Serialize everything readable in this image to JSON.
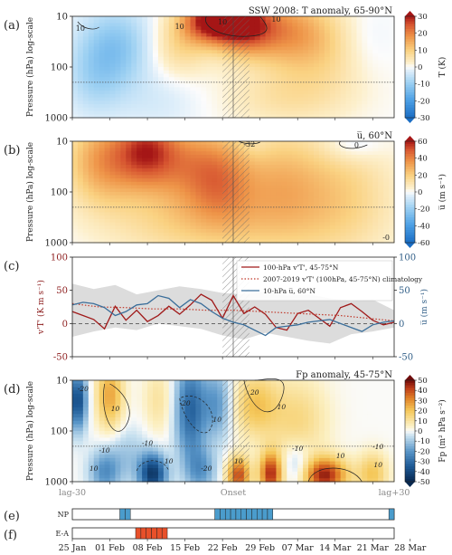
{
  "chart_data": [
    {
      "id": "a",
      "type": "heatmap",
      "panel_label": "(a)",
      "title": "SSW 2008: T anomaly, 65-90°N",
      "ylabel": "Pressure (hPa) log-scale",
      "y_ticks": [
        "10",
        "100",
        "1000"
      ],
      "ylim": [
        10,
        1000
      ],
      "y_scale": "log",
      "colorbar_label": "T (K)",
      "colorbar_ticks": [
        30,
        20,
        10,
        0,
        -10,
        -20,
        -30
      ],
      "vmin": -30,
      "vmax": 30,
      "dotted_line_hPa": 200,
      "contour_labels": [
        "10",
        "10",
        "10",
        "10"
      ],
      "blobs": [
        {
          "day": -22,
          "p": 40,
          "v": -12,
          "sd": 5,
          "sp": 0.55
        },
        {
          "day": -26,
          "p": 200,
          "v": -6,
          "sd": 4,
          "sp": 0.5
        },
        {
          "day": -10,
          "p": 40,
          "v": 8,
          "sd": 4,
          "sp": 0.4
        },
        {
          "day": -4,
          "p": 12,
          "v": 30,
          "sd": 4,
          "sp": 0.3
        },
        {
          "day": 2,
          "p": 15,
          "v": 26,
          "sd": 4,
          "sp": 0.4
        },
        {
          "day": 10,
          "p": 20,
          "v": 14,
          "sd": 5,
          "sp": 0.5
        },
        {
          "day": 18,
          "p": 40,
          "v": 8,
          "sd": 6,
          "sp": 0.6
        },
        {
          "day": 24,
          "p": 30,
          "v": -4,
          "sd": 4,
          "sp": 0.5
        },
        {
          "day": 10,
          "p": 400,
          "v": 6,
          "sd": 8,
          "sp": 0.4
        },
        {
          "day": -14,
          "p": 500,
          "v": -3,
          "sd": 6,
          "sp": 0.4
        }
      ]
    },
    {
      "id": "b",
      "type": "heatmap",
      "panel_label": "(b)",
      "title": "u̅, 60°N",
      "ylabel": "Pressure (hPa) log-scale",
      "y_ticks": [
        "10",
        "100",
        "1000"
      ],
      "ylim": [
        10,
        1000
      ],
      "y_scale": "log",
      "colorbar_label": "u̅ (m s⁻¹)",
      "colorbar_ticks": [
        60,
        40,
        20,
        0,
        -20,
        -40,
        -60
      ],
      "vmin": -60,
      "vmax": 60,
      "dotted_line_hPa": 200,
      "contour_labels": [
        "-32",
        "0",
        "-0"
      ],
      "blobs": [
        {
          "day": -24,
          "p": 25,
          "v": 34,
          "sd": 5,
          "sp": 0.6
        },
        {
          "day": -16,
          "p": 15,
          "v": 44,
          "sd": 4,
          "sp": 0.5
        },
        {
          "day": -8,
          "p": 30,
          "v": 30,
          "sd": 5,
          "sp": 0.6
        },
        {
          "day": -2,
          "p": 60,
          "v": 24,
          "sd": 4,
          "sp": 0.6
        },
        {
          "day": 8,
          "p": 60,
          "v": 22,
          "sd": 6,
          "sp": 0.7
        },
        {
          "day": 20,
          "p": 80,
          "v": 16,
          "sd": 7,
          "sp": 0.8
        },
        {
          "day": 22,
          "p": 12,
          "v": -10,
          "sd": 4,
          "sp": 0.25
        },
        {
          "day": 4,
          "p": 12,
          "v": -4,
          "sd": 2,
          "sp": 0.2
        },
        {
          "day": -10,
          "p": 400,
          "v": 14,
          "sd": 10,
          "sp": 0.5
        },
        {
          "day": 10,
          "p": 500,
          "v": 10,
          "sd": 12,
          "sp": 0.6
        }
      ]
    },
    {
      "id": "c",
      "type": "line",
      "panel_label": "(c)",
      "ylabel_left": "v'T' (K m s⁻¹)",
      "ylabel_right": "u̅ (m s⁻¹)",
      "ylim_left": [
        -50,
        100
      ],
      "ylim_right": [
        -50,
        100
      ],
      "y_ticks": [
        100,
        50,
        0,
        -50
      ],
      "legend": [
        "100-hPa v'T', 45-75°N",
        "2007-2019 v'T' (100hPa, 45-75°N) climatology",
        "10-hPa u̅, 60°N"
      ],
      "series": [
        {
          "name": "100-hPa v'T', 45-75°N",
          "color": "#a01a1a",
          "style": "solid",
          "x": [
            -30,
            -28,
            -26,
            -24,
            -22,
            -20,
            -18,
            -16,
            -14,
            -12,
            -10,
            -8,
            -6,
            -4,
            -2,
            0,
            2,
            4,
            6,
            8,
            10,
            12,
            14,
            16,
            18,
            20,
            22,
            24,
            26,
            28,
            30
          ],
          "y": [
            18,
            12,
            6,
            -8,
            26,
            5,
            20,
            3,
            12,
            26,
            14,
            28,
            44,
            35,
            8,
            42,
            15,
            25,
            14,
            -6,
            -10,
            15,
            20,
            8,
            -4,
            24,
            30,
            18,
            5,
            -2,
            2
          ]
        },
        {
          "name": "2007-2019 v'T' (100hPa, 45-75°N) climatology",
          "color": "#c0392b",
          "style": "dotted",
          "x": [
            -30,
            -25,
            -20,
            -15,
            -10,
            -5,
            0,
            5,
            10,
            15,
            20,
            25,
            30
          ],
          "y": [
            30,
            25,
            24,
            22,
            22,
            20,
            20,
            18,
            16,
            14,
            12,
            8,
            4
          ]
        },
        {
          "name": "10-hPa u̅, 60°N",
          "color": "#3a6e9a",
          "style": "solid",
          "x": [
            -30,
            -28,
            -26,
            -24,
            -22,
            -20,
            -18,
            -16,
            -14,
            -12,
            -10,
            -8,
            -6,
            -4,
            -2,
            0,
            2,
            4,
            6,
            8,
            10,
            12,
            14,
            16,
            18,
            20,
            22,
            24,
            26,
            28,
            30
          ],
          "y": [
            28,
            32,
            30,
            24,
            12,
            18,
            28,
            30,
            42,
            38,
            24,
            36,
            30,
            18,
            8,
            2,
            -2,
            -10,
            -18,
            -6,
            -4,
            -2,
            2,
            4,
            6,
            0,
            -6,
            -12,
            -2,
            2,
            4
          ]
        }
      ],
      "band": {
        "x": [
          -30,
          -26,
          -22,
          -18,
          -14,
          -10,
          -6,
          -2,
          2,
          6,
          10,
          14,
          18,
          22,
          26,
          30
        ],
        "upper": [
          60,
          52,
          58,
          44,
          50,
          56,
          52,
          46,
          44,
          48,
          42,
          44,
          38,
          34,
          36,
          20
        ],
        "lower": [
          -20,
          -12,
          -6,
          -10,
          0,
          -4,
          -8,
          -18,
          -24,
          -14,
          -20,
          -26,
          -30,
          -16,
          -12,
          -6
        ]
      }
    },
    {
      "id": "d",
      "type": "heatmap",
      "panel_label": "(d)",
      "title": "Fp anomaly, 45-75°N",
      "ylabel": "Pressure (hPa) log-scale",
      "y_ticks": [
        "10",
        "100",
        "1000"
      ],
      "ylim": [
        10,
        1000
      ],
      "y_scale": "log",
      "colorbar_label": "Fp (m² hPa s⁻²)",
      "colorbar_ticks": [
        50,
        40,
        30,
        20,
        10,
        0,
        -10,
        -20,
        -30,
        -40,
        -50
      ],
      "vmin": -50,
      "vmax": 50,
      "dotted_line_hPa": 200,
      "x_ticks_labels": {
        "left": "lag-30",
        "center": "Onset",
        "right": "lag+30"
      },
      "contour_labels": [
        "-20",
        "10",
        "-20",
        "10",
        "20",
        "10",
        "-10",
        "10",
        "-10",
        "10",
        "-20",
        "10",
        "-10",
        "10",
        "-10",
        "10"
      ],
      "blobs": [
        {
          "day": -29,
          "p": 25,
          "v": -40,
          "sd": 1.2,
          "sp": 0.4
        },
        {
          "day": -23,
          "p": 20,
          "v": 26,
          "sd": 1.8,
          "sp": 0.5
        },
        {
          "day": -14,
          "p": 25,
          "v": 10,
          "sd": 2,
          "sp": 0.5
        },
        {
          "day": -8,
          "p": 40,
          "v": -32,
          "sd": 2,
          "sp": 0.7
        },
        {
          "day": -3,
          "p": 30,
          "v": -20,
          "sd": 2,
          "sp": 0.5
        },
        {
          "day": 4,
          "p": 30,
          "v": 20,
          "sd": 3,
          "sp": 0.45
        },
        {
          "day": 12,
          "p": 60,
          "v": 14,
          "sd": 4,
          "sp": 0.6
        },
        {
          "day": -15,
          "p": 700,
          "v": -44,
          "sd": 1.8,
          "sp": 0.28
        },
        {
          "day": -24,
          "p": 650,
          "v": -20,
          "sd": 2,
          "sp": 0.3
        },
        {
          "day": -6,
          "p": 600,
          "v": -18,
          "sd": 2,
          "sp": 0.3
        },
        {
          "day": 1,
          "p": 750,
          "v": 40,
          "sd": 1.5,
          "sp": 0.25
        },
        {
          "day": 7,
          "p": 700,
          "v": 44,
          "sd": 1.5,
          "sp": 0.3
        },
        {
          "day": 17,
          "p": 750,
          "v": 46,
          "sd": 3,
          "sp": 0.25
        },
        {
          "day": 26,
          "p": 700,
          "v": 20,
          "sd": 2,
          "sp": 0.3
        },
        {
          "day": 12,
          "p": 500,
          "v": -14,
          "sd": 2,
          "sp": 0.3
        },
        {
          "day": -20,
          "p": 300,
          "v": -10,
          "sd": 3,
          "sp": 0.4
        }
      ]
    },
    {
      "id": "e",
      "type": "table",
      "panel_label": "(e)",
      "row_label": "NP",
      "color": "#4a9ccc",
      "active_days": [
        -21,
        -20,
        -3,
        -2,
        -1,
        0,
        1,
        2,
        3,
        4,
        5,
        6,
        7,
        30
      ]
    },
    {
      "id": "f",
      "type": "table",
      "panel_label": "(f)",
      "row_label": "E-A",
      "color": "#e8502a",
      "active_days": [
        -18,
        -17,
        -16,
        -15,
        -14,
        -13
      ]
    }
  ],
  "date_axis": {
    "labels": [
      "25 Jan",
      "01 Feb",
      "08 Feb",
      "15 Feb",
      "22 Feb",
      "29 Feb",
      "07 Mar",
      "14 Mar",
      "21 Mar",
      "28 Mar"
    ],
    "lag_days": [
      -30,
      -23,
      -16,
      -9,
      -2,
      5,
      12,
      19,
      26,
      33
    ]
  },
  "onset_shading": {
    "from_lag": -2,
    "to_lag": 3
  }
}
